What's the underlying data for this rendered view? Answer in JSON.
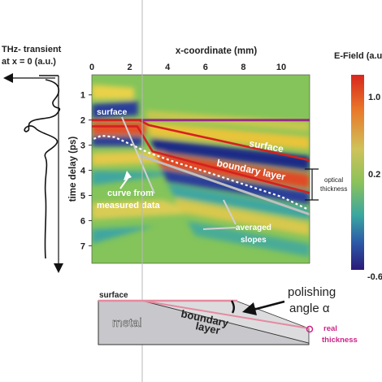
{
  "chart_data": {
    "type": "heatmap",
    "title": "",
    "xlabel": "x-coordinate (mm)",
    "ylabel": "time delay (ps)",
    "xticks": [
      0,
      2,
      4,
      6,
      8,
      10
    ],
    "yticks": [
      1,
      2,
      3,
      4,
      5,
      6,
      7
    ],
    "xlim": [
      0,
      11.5
    ],
    "ylim": [
      0.2,
      7.7
    ],
    "colorbar": {
      "label": "E-Field (a.u.)",
      "ticks": [
        "1.0",
        "0.2",
        "-0.6"
      ],
      "values": [
        1.0,
        0.2,
        -0.6
      ]
    },
    "transient_panel": {
      "label_line1": "THz- transient",
      "label_line2": "at x = 0 (a.u.)"
    },
    "annotations": {
      "surface_top": "surface",
      "surface_band": "surface",
      "boundary_layer": "boundary layer",
      "curve_line1": "curve from",
      "curve_line2": "measured data",
      "averaged_line1": "averaged",
      "averaged_line2": "slopes",
      "optical_line1": "optical",
      "optical_line2": "thickness"
    },
    "bands": [
      {
        "name": "surface",
        "color": "#9a2a8a",
        "x": [
          0,
          11.5
        ],
        "y": [
          2.0,
          2.0
        ]
      },
      {
        "name": "red-upper",
        "color": "#d62020",
        "x": [
          0,
          2.5,
          3.0,
          11.5
        ],
        "y": [
          2.0,
          2.0,
          2.2,
          3.6
        ]
      },
      {
        "name": "red-lower",
        "color": "#d62020",
        "x": [
          0,
          2.4,
          3.2,
          11.5
        ],
        "y": [
          2.25,
          2.25,
          3.25,
          4.9
        ]
      },
      {
        "name": "curve-from-measured-data",
        "color": "#ffffff",
        "x": [
          0.1,
          0.5,
          1.2,
          2.0,
          3.0,
          4.5,
          6.0,
          8.0,
          10.0,
          11.4
        ],
        "y": [
          2.75,
          2.62,
          2.68,
          2.95,
          3.3,
          3.7,
          4.05,
          4.55,
          5.05,
          5.55
        ]
      },
      {
        "name": "averaged-slope",
        "color": "#bfbfbf",
        "x": [
          2.5,
          11.5
        ],
        "y": [
          3.4,
          5.75
        ]
      }
    ]
  },
  "schematic": {
    "surface": "surface",
    "metal": "metal",
    "boundary_line1": "boundary",
    "boundary_line2": "layer",
    "polishing_line1": "polishing",
    "polishing_line2": "angle α",
    "real_line1": "real",
    "real_line2": "thickness"
  },
  "colors": {
    "surface": "#9a2a8a",
    "boundary": "#d62020",
    "measured": "#ffffff",
    "averaged": "#bfbfbf",
    "real_thickness": "#cc2288",
    "metal": "#c8c8cc"
  }
}
